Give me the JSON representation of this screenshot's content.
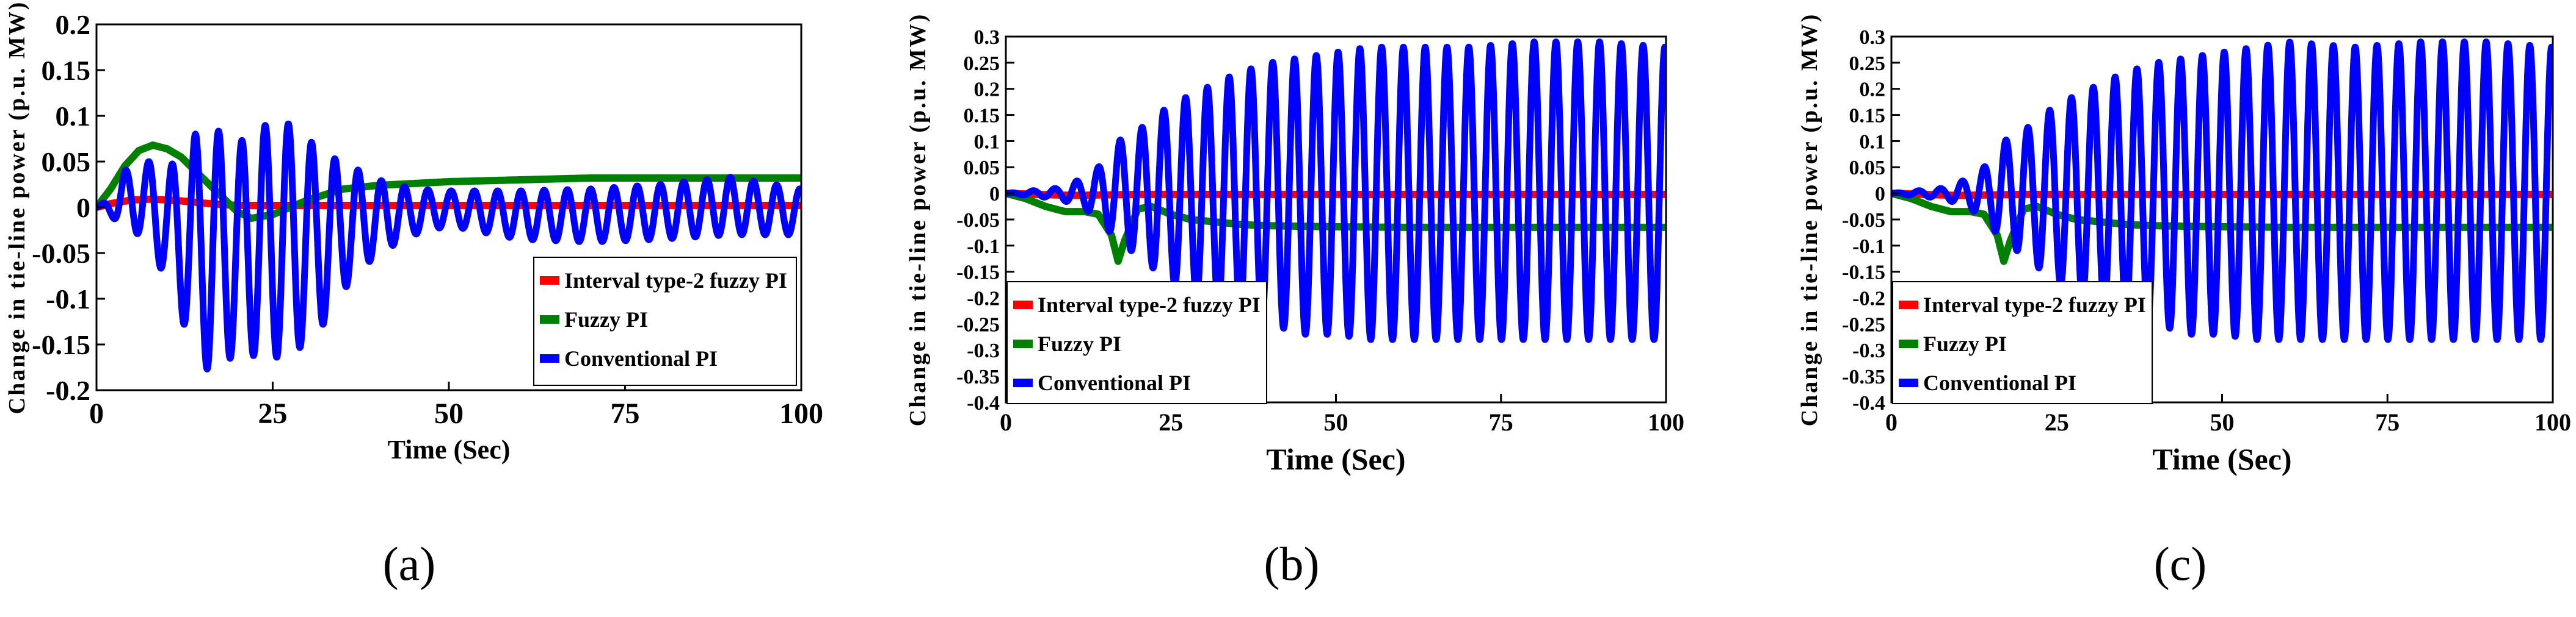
{
  "chart_data": [
    {
      "type": "line",
      "panel_label": "(a)",
      "xlabel": "Time (Sec)",
      "ylabel": "Change in tie-line power (p.u. MW)",
      "xlim": [
        0,
        100
      ],
      "ylim": [
        -0.2,
        0.2
      ],
      "xticks": [
        0,
        25,
        50,
        75,
        100
      ],
      "yticks": [
        0.2,
        0.15,
        0.1,
        0.05,
        0,
        -0.05,
        -0.1,
        -0.15,
        -0.2
      ],
      "ytick_labels": [
        "0.2",
        "0.15",
        "0.1",
        "0.05",
        "0",
        "-0.05",
        "-0.1",
        "-0.15",
        "-0.2"
      ],
      "legend_position": "bottom-right",
      "series": [
        {
          "name": "Interval type-2 fuzzy PI",
          "color": "#ff0000",
          "x": [
            0,
            2,
            5,
            8,
            12,
            16,
            20,
            30,
            40,
            60,
            80,
            100
          ],
          "y": [
            0,
            0.004,
            0.008,
            0.009,
            0.007,
            0.004,
            0.002,
            0.002,
            0.002,
            0.002,
            0.002,
            0.002
          ]
        },
        {
          "name": "Fuzzy PI",
          "color": "#008000",
          "x": [
            0,
            2,
            4,
            6,
            8,
            10,
            12,
            14,
            16,
            18,
            20,
            22,
            25,
            30,
            35,
            40,
            45,
            50,
            60,
            70,
            80,
            90,
            100
          ],
          "y": [
            0,
            0.02,
            0.045,
            0.062,
            0.068,
            0.064,
            0.055,
            0.04,
            0.025,
            0.01,
            -0.005,
            -0.012,
            -0.008,
            0.008,
            0.02,
            0.024,
            0.026,
            0.028,
            0.03,
            0.032,
            0.032,
            0.032,
            0.032
          ]
        },
        {
          "name": "Conventional PI",
          "color": "#0000ff",
          "oscillation": {
            "period_sec": 3.3,
            "offset": 0.0
          },
          "envelope": {
            "t": [
              0,
              2,
              4,
              6,
              8,
              10,
              12,
              14,
              16,
              18,
              20,
              25,
              28,
              32,
              36,
              40,
              45,
              50,
              60,
              70,
              80,
              90,
              100
            ],
            "high": [
              0,
              0.01,
              0.04,
              0.05,
              0.05,
              0.04,
              0.06,
              0.08,
              0.09,
              0.08,
              0.07,
              0.095,
              0.09,
              0.06,
              0.045,
              0.03,
              0.02,
              0.018,
              0.018,
              0.02,
              0.025,
              0.033,
              0.02
            ],
            "low": [
              0,
              -0.01,
              -0.02,
              -0.03,
              -0.05,
              -0.08,
              -0.12,
              -0.16,
              -0.18,
              -0.17,
              -0.16,
              -0.165,
              -0.16,
              -0.13,
              -0.08,
              -0.05,
              -0.03,
              -0.02,
              -0.035,
              -0.038,
              -0.035,
              -0.03,
              -0.03
            ]
          }
        }
      ]
    },
    {
      "type": "line",
      "panel_label": "(b)",
      "xlabel": "Time (Sec)",
      "ylabel": "Change in tie-line power (p.u. MW)",
      "xlim": [
        0,
        100
      ],
      "ylim": [
        -0.4,
        0.3
      ],
      "xticks": [
        0,
        25,
        50,
        75,
        100
      ],
      "yticks": [
        0.3,
        0.25,
        0.2,
        0.15,
        0.1,
        0.05,
        0,
        -0.05,
        -0.1,
        -0.15,
        -0.2,
        -0.25,
        -0.3,
        -0.35,
        -0.4
      ],
      "ytick_labels": [
        "0.3",
        "0.25",
        "0.2",
        "0.15",
        "0.1",
        "0.05",
        "0",
        "-0.05",
        "-0.1",
        "-0.15",
        "-0.2",
        "-0.25",
        "-0.3",
        "-0.35",
        "-0.4"
      ],
      "legend_position": "bottom-left",
      "series": [
        {
          "name": "Interval type-2 fuzzy PI",
          "color": "#ff0000",
          "x": [
            0,
            5,
            10,
            15,
            20,
            30,
            50,
            75,
            100
          ],
          "y": [
            0,
            -0.002,
            -0.004,
            -0.003,
            -0.002,
            -0.002,
            -0.002,
            -0.002,
            -0.002
          ]
        },
        {
          "name": "Fuzzy PI",
          "color": "#008000",
          "x": [
            0,
            3,
            6,
            9,
            12,
            14,
            16,
            17,
            18,
            20,
            22,
            25,
            28,
            32,
            36,
            40,
            50,
            60,
            75,
            100
          ],
          "y": [
            0,
            -0.01,
            -0.025,
            -0.035,
            -0.035,
            -0.04,
            -0.08,
            -0.13,
            -0.09,
            -0.03,
            -0.025,
            -0.04,
            -0.05,
            -0.055,
            -0.06,
            -0.062,
            -0.064,
            -0.065,
            -0.065,
            -0.065
          ]
        },
        {
          "name": "Conventional PI",
          "color": "#0000ff",
          "oscillation": {
            "period_sec": 3.3,
            "offset": 0.0
          },
          "envelope": {
            "t": [
              0,
              4,
              8,
              12,
              14,
              17,
              20,
              25,
              30,
              35,
              40,
              45,
              50,
              55,
              60,
              70,
              80,
              90,
              100
            ],
            "high": [
              0,
              0.005,
              0.01,
              0.03,
              0.05,
              0.1,
              0.12,
              0.17,
              0.2,
              0.23,
              0.25,
              0.26,
              0.27,
              0.28,
              0.28,
              0.28,
              0.29,
              0.29,
              0.28
            ],
            "low": [
              0,
              -0.005,
              -0.01,
              -0.03,
              -0.05,
              -0.09,
              -0.12,
              -0.17,
              -0.21,
              -0.23,
              -0.25,
              -0.27,
              -0.27,
              -0.28,
              -0.28,
              -0.28,
              -0.28,
              -0.28,
              -0.28
            ]
          }
        }
      ]
    },
    {
      "type": "line",
      "panel_label": "(c)",
      "xlabel": "Time (Sec)",
      "ylabel": "Change in tie-line power (p.u. MW)",
      "xlim": [
        0,
        100
      ],
      "ylim": [
        -0.4,
        0.3
      ],
      "xticks": [
        0,
        25,
        50,
        75,
        100
      ],
      "yticks": [
        0.3,
        0.25,
        0.2,
        0.15,
        0.1,
        0.05,
        0,
        -0.05,
        -0.1,
        -0.15,
        -0.2,
        -0.25,
        -0.3,
        -0.35,
        -0.4
      ],
      "ytick_labels": [
        "0.3",
        "0.25",
        "0.2",
        "0.15",
        "0.1",
        "0.05",
        "0",
        "-0.05",
        "-0.1",
        "-0.15",
        "-0.2",
        "-0.25",
        "-0.3",
        "-0.35",
        "-0.4"
      ],
      "legend_position": "bottom-left",
      "series": [
        {
          "name": "Interval type-2 fuzzy PI",
          "color": "#ff0000",
          "x": [
            0,
            5,
            10,
            15,
            20,
            30,
            50,
            75,
            100
          ],
          "y": [
            0,
            -0.002,
            -0.004,
            -0.003,
            -0.002,
            -0.002,
            -0.002,
            -0.002,
            -0.002
          ]
        },
        {
          "name": "Fuzzy PI",
          "color": "#008000",
          "x": [
            0,
            3,
            6,
            9,
            12,
            14,
            16,
            17,
            18,
            20,
            22,
            25,
            28,
            32,
            36,
            40,
            50,
            60,
            75,
            100
          ],
          "y": [
            0,
            -0.01,
            -0.025,
            -0.035,
            -0.035,
            -0.04,
            -0.08,
            -0.13,
            -0.09,
            -0.03,
            -0.025,
            -0.04,
            -0.05,
            -0.055,
            -0.06,
            -0.062,
            -0.064,
            -0.065,
            -0.065,
            -0.065
          ]
        },
        {
          "name": "Conventional PI",
          "color": "#0000ff",
          "oscillation": {
            "period_sec": 3.3,
            "offset": 0.0
          },
          "envelope": {
            "t": [
              0,
              4,
              8,
              12,
              14,
              17,
              20,
              25,
              30,
              35,
              40,
              45,
              50,
              55,
              60,
              70,
              80,
              90,
              100
            ],
            "high": [
              0,
              0.005,
              0.01,
              0.03,
              0.05,
              0.1,
              0.12,
              0.17,
              0.2,
              0.23,
              0.25,
              0.26,
              0.27,
              0.28,
              0.29,
              0.28,
              0.29,
              0.29,
              0.28
            ],
            "low": [
              0,
              -0.005,
              -0.01,
              -0.03,
              -0.05,
              -0.09,
              -0.12,
              -0.17,
              -0.21,
              -0.23,
              -0.25,
              -0.27,
              -0.27,
              -0.28,
              -0.28,
              -0.28,
              -0.28,
              -0.28,
              -0.28
            ]
          }
        }
      ]
    }
  ]
}
